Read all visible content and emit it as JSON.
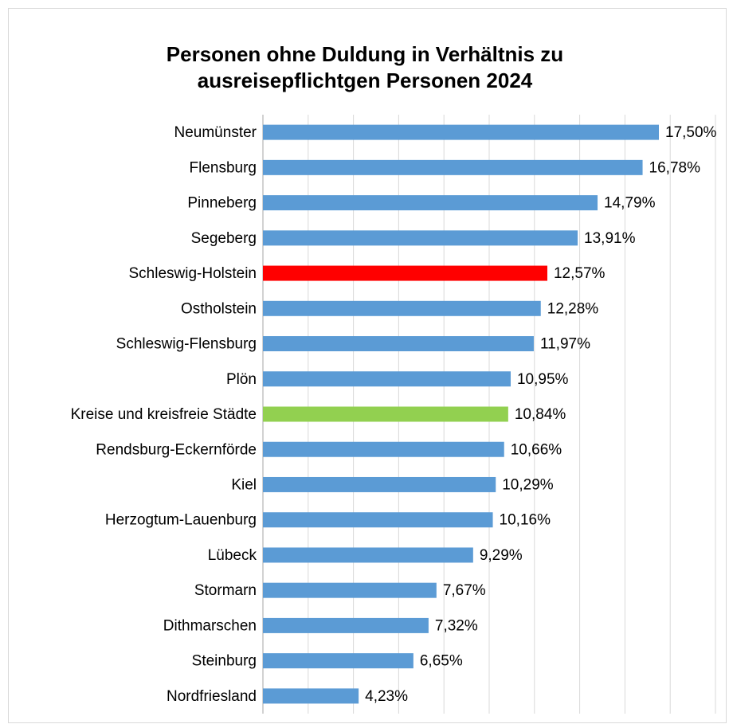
{
  "chart_data": {
    "type": "bar",
    "orientation": "horizontal",
    "title": [
      "Personen ohne Duldung in Verhältnis zu",
      "ausreisepflichtgen Personen 2024"
    ],
    "categories": [
      "Neumünster",
      "Flensburg",
      "Pinneberg",
      "Segeberg",
      "Schleswig-Holstein",
      "Ostholstein",
      "Schleswig-Flensburg",
      "Plön",
      "Kreise und kreisfreie Städte",
      "Rendsburg-Eckernförde",
      "Kiel",
      "Herzogtum-Lauenburg",
      "Lübeck",
      "Stormarn",
      "Dithmarschen",
      "Steinburg",
      "Nordfriesland"
    ],
    "values": [
      17.5,
      16.78,
      14.79,
      13.91,
      12.57,
      12.28,
      11.97,
      10.95,
      10.84,
      10.66,
      10.29,
      10.16,
      9.29,
      7.67,
      7.32,
      6.65,
      4.23
    ],
    "value_labels": [
      "17,50%",
      "16,78%",
      "14,79%",
      "13,91%",
      "12,57%",
      "12,28%",
      "11,97%",
      "10,95%",
      "10,84%",
      "10,66%",
      "10,29%",
      "10,16%",
      "9,29%",
      "7,67%",
      "7,32%",
      "6,65%",
      "4,23%"
    ],
    "colors": [
      "#5b9bd5",
      "#5b9bd5",
      "#5b9bd5",
      "#5b9bd5",
      "#ff0000",
      "#5b9bd5",
      "#5b9bd5",
      "#5b9bd5",
      "#92d050",
      "#5b9bd5",
      "#5b9bd5",
      "#5b9bd5",
      "#5b9bd5",
      "#5b9bd5",
      "#5b9bd5",
      "#5b9bd5",
      "#5b9bd5"
    ],
    "xlim": [
      0,
      20
    ],
    "xticks": [
      0,
      2,
      4,
      6,
      8,
      10,
      12,
      14,
      16,
      18,
      20
    ],
    "grid": true
  }
}
